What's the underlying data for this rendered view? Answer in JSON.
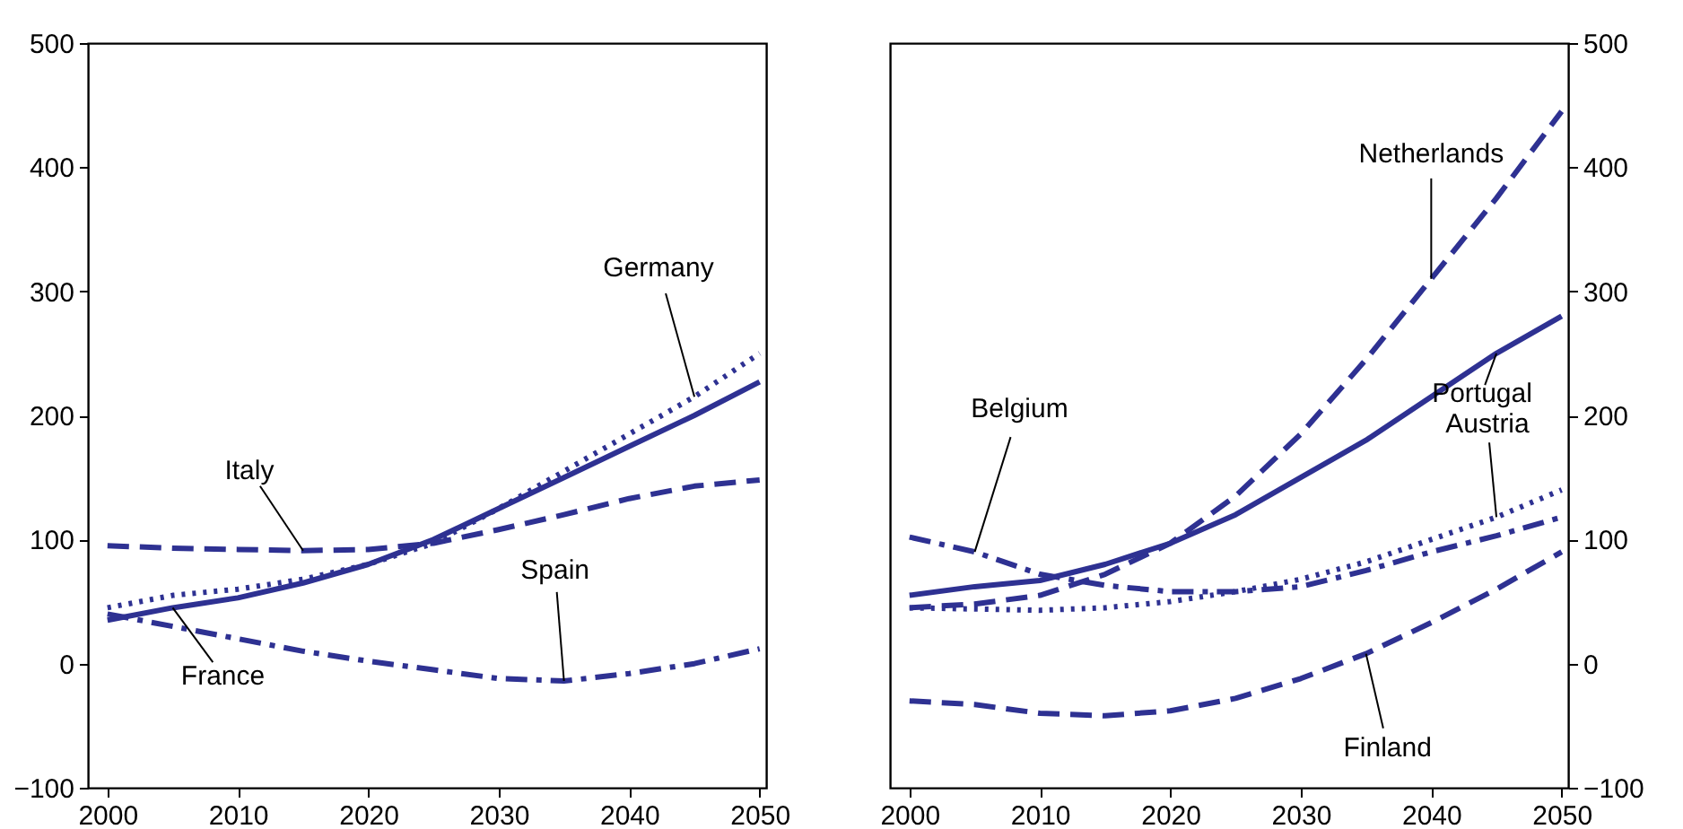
{
  "chart_data": [
    {
      "type": "line",
      "x": [
        2000,
        2005,
        2010,
        2015,
        2020,
        2025,
        2030,
        2035,
        2040,
        2045,
        2050
      ],
      "xlim": [
        1998.5,
        2050.5
      ],
      "xticks": [
        2000,
        2010,
        2020,
        2030,
        2040,
        2050
      ],
      "ylim": [
        -100,
        500
      ],
      "yticks": [
        -100,
        0,
        100,
        200,
        300,
        400,
        500
      ],
      "grid": false,
      "series": [
        {
          "name": "Germany",
          "color": "#2e3192",
          "line_style": "dotted",
          "values": [
            45,
            55,
            60,
            68,
            80,
            97,
            125,
            155,
            185,
            215,
            250
          ]
        },
        {
          "name": "Italy",
          "color": "#2e3192",
          "line_style": "dashed",
          "values": [
            95,
            93,
            92,
            91,
            92,
            97,
            108,
            120,
            133,
            143,
            148
          ]
        },
        {
          "name": "France",
          "color": "#2e3192",
          "line_style": "solid",
          "values": [
            35,
            45,
            53,
            65,
            80,
            100,
            125,
            150,
            175,
            200,
            227
          ]
        },
        {
          "name": "Spain",
          "color": "#2e3192",
          "line_style": "dashdot",
          "values": [
            40,
            30,
            20,
            10,
            2,
            -5,
            -12,
            -14,
            -8,
            0,
            12
          ]
        }
      ]
    },
    {
      "type": "line",
      "x": [
        2000,
        2005,
        2010,
        2015,
        2020,
        2025,
        2030,
        2035,
        2040,
        2045,
        2050
      ],
      "xlim": [
        1998.5,
        2050.5
      ],
      "xticks": [
        2000,
        2010,
        2020,
        2030,
        2040,
        2050
      ],
      "ylim": [
        -100,
        500
      ],
      "yticks": [
        -100,
        0,
        100,
        200,
        300,
        400,
        500
      ],
      "grid": false,
      "series": [
        {
          "name": "Netherlands",
          "color": "#2e3192",
          "line_style": "dashed",
          "values": [
            45,
            48,
            55,
            72,
            97,
            135,
            185,
            245,
            310,
            375,
            445
          ]
        },
        {
          "name": "Portugal",
          "color": "#2e3192",
          "line_style": "solid",
          "values": [
            55,
            62,
            67,
            80,
            97,
            120,
            150,
            180,
            215,
            250,
            280
          ]
        },
        {
          "name": "Austria",
          "color": "#2e3192",
          "line_style": "dotted",
          "values": [
            45,
            44,
            43,
            45,
            50,
            58,
            68,
            82,
            100,
            118,
            140
          ]
        },
        {
          "name": "Belgium",
          "color": "#2e3192",
          "line_style": "dashdot",
          "values": [
            102,
            90,
            72,
            63,
            58,
            58,
            62,
            75,
            90,
            103,
            118
          ]
        },
        {
          "name": "Finland",
          "color": "#2e3192",
          "line_style": "dashed",
          "values": [
            -30,
            -33,
            -40,
            -42,
            -38,
            -28,
            -12,
            8,
            33,
            60,
            90
          ]
        }
      ]
    }
  ]
}
